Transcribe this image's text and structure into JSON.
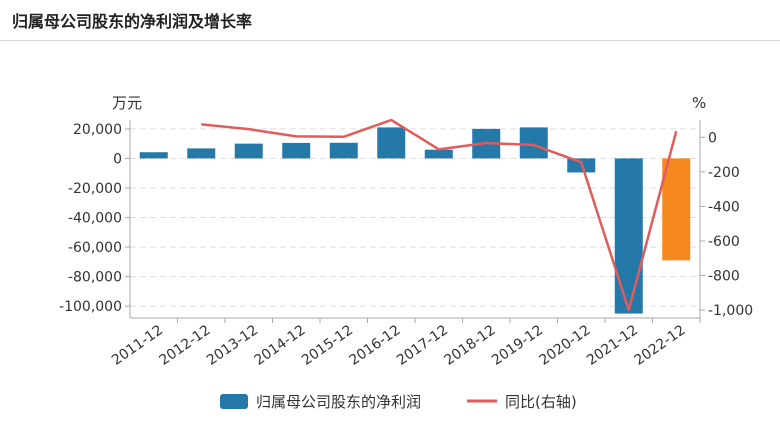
{
  "header": {
    "title": "归属母公司股东的净利润及增长率"
  },
  "chart_data": {
    "type": "bar",
    "categories": [
      "2011-12",
      "2012-12",
      "2013-12",
      "2014-12",
      "2015-12",
      "2016-12",
      "2017-12",
      "2018-12",
      "2019-12",
      "2020-12",
      "2021-12",
      "2022-12"
    ],
    "series": [
      {
        "name": "归属母公司股东的净利润",
        "type": "bar",
        "axis": "left",
        "values": [
          4200,
          6800,
          10000,
          10500,
          10600,
          21000,
          5900,
          20000,
          21000,
          -9500,
          -105000,
          -69000
        ]
      },
      {
        "name": "同比(右轴)",
        "type": "line",
        "axis": "right",
        "values": [
          null,
          75,
          47,
          5,
          3,
          100,
          -70,
          -33,
          -45,
          -145,
          -1000,
          35
        ]
      }
    ],
    "highlight_last_bar": true,
    "colors": {
      "bar": "#2479a9",
      "bar_highlight": "#f5891f",
      "line": "#e05c5c",
      "grid": "#dddddd",
      "axis": "#aaaaaa"
    },
    "y_left": {
      "unit": "万元",
      "ticks": [
        20000,
        0,
        -20000,
        -40000,
        -60000,
        -80000,
        -100000
      ],
      "tick_labels": [
        "20,000",
        "0",
        "-20,000",
        "-40,000",
        "-60,000",
        "-80,000",
        "-100,000"
      ],
      "range": [
        -108000,
        26000
      ]
    },
    "y_right": {
      "unit": "%",
      "ticks": [
        0,
        -200,
        -400,
        -600,
        -800,
        -1000
      ],
      "tick_labels": [
        "0",
        "-200",
        "-400",
        "-600",
        "-800",
        "-1,000"
      ],
      "range": [
        -1046,
        100
      ]
    },
    "grid": true,
    "legend_position": "bottom"
  }
}
